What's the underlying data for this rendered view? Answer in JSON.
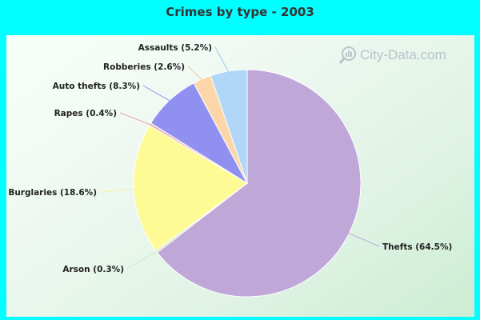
{
  "chart_data": {
    "type": "pie",
    "title": "Crimes by type - 2003",
    "slices": [
      {
        "label": "Thefts (64.5%)",
        "value": 64.5,
        "color": "#bfa8d8",
        "line": "#bfa8d8"
      },
      {
        "label": "Arson (0.3%)",
        "value": 0.3,
        "color": "#cde8c0",
        "line": "#cde8c0"
      },
      {
        "label": "Burglaries (18.6%)",
        "value": 18.6,
        "color": "#fefa96",
        "line": "#f6f2a0"
      },
      {
        "label": "Rapes (0.4%)",
        "value": 0.4,
        "color": "#f0b4b4",
        "line": "#e8a8a8"
      },
      {
        "label": "Auto thefts (8.3%)",
        "value": 8.3,
        "color": "#9090f0",
        "line": "#9090f0"
      },
      {
        "label": "Robberies (2.6%)",
        "value": 2.6,
        "color": "#fcd6a8",
        "line": "#f4c898"
      },
      {
        "label": "Assaults (5.2%)",
        "value": 5.2,
        "color": "#b0d6f8",
        "line": "#a0c8f0"
      }
    ]
  },
  "watermark": "City-Data.com",
  "watermark_icon": "magnifier-chart-icon"
}
